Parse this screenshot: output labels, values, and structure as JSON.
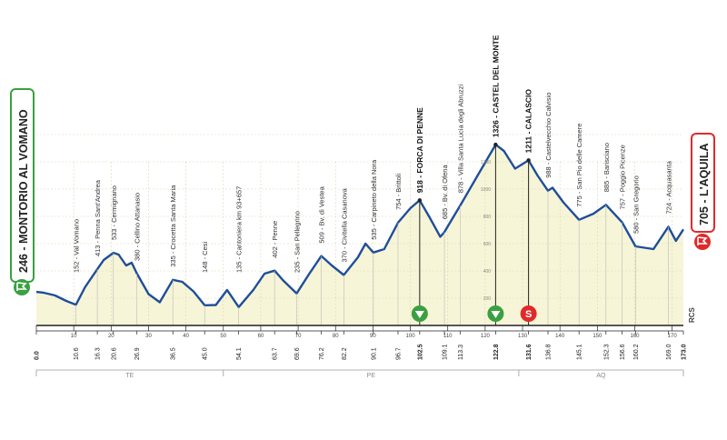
{
  "colors": {
    "line": "#1f4e9a",
    "fill": "#f7f5d7",
    "grid": "#d9d7b5",
    "start": "#3aa041",
    "finish": "#e02a2a",
    "kom": "#3aa041",
    "sprint": "#e02a2a",
    "axis": "#222222",
    "region": "#999999"
  },
  "start": {
    "label": "246 - MONTORIO AL VOMANO",
    "icon": "start-flag-icon"
  },
  "finish": {
    "label": "705 - L'AQUILA",
    "icon": "finish-flag-icon"
  },
  "watermark": "RCS",
  "chart_data": {
    "type": "area",
    "xlim": [
      0,
      173
    ],
    "ylim": [
      0,
      1600
    ],
    "altitude_ticks": [
      "1200",
      "1000",
      "800",
      "600",
      "400",
      "200"
    ],
    "km_ticks": [
      "0.0",
      "10.6",
      "16.3",
      "20.6",
      "26.9",
      "36.5",
      "45.0",
      "54.1",
      "63.7",
      "69.6",
      "76.2",
      "82.2",
      "90.1",
      "96.7",
      "102.5",
      "109.1",
      "113.3",
      "122.8",
      "131.6",
      "136.8",
      "145.1",
      "152.3",
      "156.6",
      "160.2",
      "169.0",
      "173.0"
    ],
    "profile": [
      [
        0,
        246
      ],
      [
        2,
        240
      ],
      [
        5,
        220
      ],
      [
        8,
        180
      ],
      [
        10.6,
        152
      ],
      [
        13,
        280
      ],
      [
        16.3,
        413
      ],
      [
        18,
        480
      ],
      [
        20.6,
        533
      ],
      [
        22,
        520
      ],
      [
        24,
        440
      ],
      [
        25.5,
        460
      ],
      [
        26.9,
        380
      ],
      [
        30,
        230
      ],
      [
        33,
        170
      ],
      [
        36.5,
        335
      ],
      [
        39,
        320
      ],
      [
        42,
        250
      ],
      [
        45,
        148
      ],
      [
        48,
        150
      ],
      [
        51,
        260
      ],
      [
        54.1,
        135
      ],
      [
        58,
        260
      ],
      [
        61,
        380
      ],
      [
        63.7,
        402
      ],
      [
        66,
        330
      ],
      [
        69.6,
        235
      ],
      [
        73,
        380
      ],
      [
        76.2,
        509
      ],
      [
        79,
        440
      ],
      [
        82.2,
        370
      ],
      [
        86,
        500
      ],
      [
        88,
        600
      ],
      [
        90.1,
        535
      ],
      [
        93,
        560
      ],
      [
        96.7,
        754
      ],
      [
        100,
        860
      ],
      [
        102.5,
        918
      ],
      [
        105,
        800
      ],
      [
        108,
        650
      ],
      [
        109.1,
        685
      ],
      [
        113.3,
        878
      ],
      [
        118,
        1100
      ],
      [
        122.8,
        1326
      ],
      [
        125,
        1280
      ],
      [
        128,
        1150
      ],
      [
        131.6,
        1211
      ],
      [
        134,
        1100
      ],
      [
        136.8,
        988
      ],
      [
        138,
        1010
      ],
      [
        141,
        900
      ],
      [
        145.1,
        775
      ],
      [
        149,
        820
      ],
      [
        152.3,
        885
      ],
      [
        156.6,
        757
      ],
      [
        160.2,
        580
      ],
      [
        165,
        560
      ],
      [
        169,
        724
      ],
      [
        171,
        620
      ],
      [
        173,
        705
      ]
    ],
    "waypoints": [
      {
        "km": 10.6,
        "label": "152 - Val Vomano"
      },
      {
        "km": 16.3,
        "label": "413 - Penna Sant'Andrea"
      },
      {
        "km": 20.6,
        "label": "533 - Cermignano"
      },
      {
        "km": 26.9,
        "label": "380 - Cellino Attanasio"
      },
      {
        "km": 36.5,
        "label": "335 - Crocetta Santa Maria"
      },
      {
        "km": 45.0,
        "label": "148 - Cesi"
      },
      {
        "km": 54.1,
        "label": "135 - Cantoniera km 93+657"
      },
      {
        "km": 63.7,
        "label": "402 - Penne"
      },
      {
        "km": 69.6,
        "label": "235 - San Pellegrino"
      },
      {
        "km": 76.2,
        "label": "509 - Bv. di Vestea"
      },
      {
        "km": 82.2,
        "label": "370 - Civitella Casanova"
      },
      {
        "km": 90.1,
        "label": "535 - Carpineto della Nora"
      },
      {
        "km": 96.7,
        "label": "754 - Brittoli"
      },
      {
        "km": 102.5,
        "label": "918 - FORCA DI PENNE",
        "bold": true
      },
      {
        "km": 109.1,
        "label": "685 - Bv. di Ofena"
      },
      {
        "km": 113.3,
        "label": "878 - Villa Santa Lucia degli Abruzzi"
      },
      {
        "km": 122.8,
        "label": "1326 - CASTEL DEL MONTE",
        "bold": true
      },
      {
        "km": 131.6,
        "label": "1211 - CALASCIO",
        "bold": true
      },
      {
        "km": 136.8,
        "label": "988 - Castelvecchio Calvisio"
      },
      {
        "km": 145.1,
        "label": "775 - San Pio delle Camere"
      },
      {
        "km": 152.3,
        "label": "885 - Barisciano"
      },
      {
        "km": 156.6,
        "label": "757 - Poggio Picenze"
      },
      {
        "km": 160.2,
        "label": "580 - San Gregorio"
      },
      {
        "km": 169.0,
        "label": "724 - Acquasanta"
      }
    ],
    "markers": [
      {
        "km": 102.5,
        "type": "kom",
        "icon": "kom-triangle-icon"
      },
      {
        "km": 122.8,
        "type": "kom",
        "icon": "kom-triangle-icon"
      },
      {
        "km": 131.6,
        "type": "sprint",
        "label": "S",
        "icon": "sprint-s-icon"
      }
    ],
    "regions": [
      {
        "label": "TE",
        "from": 0,
        "to": 50
      },
      {
        "label": "PE",
        "from": 50,
        "to": 129
      },
      {
        "label": "AQ",
        "from": 129,
        "to": 173
      }
    ]
  }
}
